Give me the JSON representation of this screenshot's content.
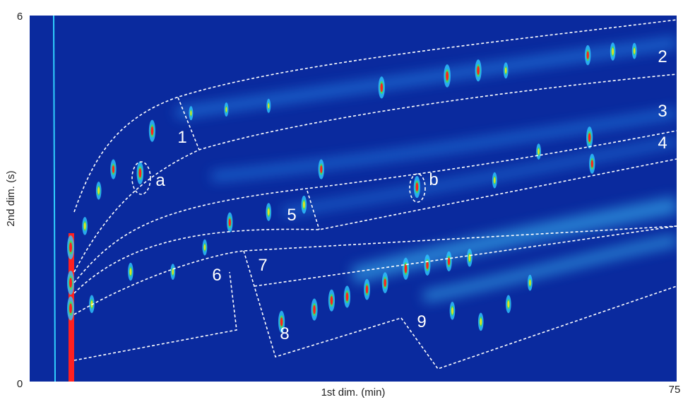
{
  "chart_data": {
    "type": "contour",
    "xlabel": "1st dim. (min)",
    "ylabel": "2nd dim. (s)",
    "xlim": [
      0,
      75
    ],
    "ylim": [
      0,
      6
    ],
    "xticks": [
      0,
      75
    ],
    "yticks": [
      6
    ],
    "background": "#0a2a9e",
    "annotations": [
      "1",
      "2",
      "3",
      "4",
      "5",
      "6",
      "7",
      "8",
      "9",
      "a",
      "b"
    ],
    "peaks": {
      "x": [
        40.8,
        48.4,
        52.0,
        55.2,
        64.7,
        67.6,
        70.1,
        27.7,
        22.8,
        18.7,
        14.2,
        12.8,
        9.7,
        8.0,
        6.4,
        44.9,
        33.8,
        64.9,
        65.2,
        59.0,
        53.9,
        31.8,
        27.7,
        23.2,
        20.3,
        29.2,
        33.0,
        35.0,
        36.8,
        39.1,
        41.2,
        43.6,
        46.1,
        48.6,
        51.0,
        49.0,
        52.3,
        55.5,
        58.0,
        16.6,
        11.7,
        7.2,
        4.75,
        4.75,
        4.75
      ],
      "y": [
        4.82,
        5.01,
        5.1,
        5.1,
        5.35,
        5.41,
        5.42,
        4.52,
        4.46,
        4.4,
        4.11,
        3.42,
        3.48,
        3.13,
        2.55,
        3.19,
        3.48,
        4.0,
        3.57,
        3.77,
        3.3,
        2.9,
        2.78,
        2.61,
        2.2,
        0.98,
        1.18,
        1.33,
        1.39,
        1.51,
        1.62,
        1.85,
        1.91,
        1.97,
        2.03,
        1.16,
        0.98,
        1.27,
        1.62,
        1.8,
        1.8,
        1.27,
        1.62,
        1.2,
        2.2
      ],
      "intensity": [
        0.9,
        0.95,
        0.9,
        0.6,
        0.8,
        0.7,
        0.6,
        0.5,
        0.5,
        0.5,
        0.9,
        0.95,
        0.8,
        0.7,
        0.7,
        0.9,
        0.8,
        0.9,
        0.8,
        0.6,
        0.6,
        0.7,
        0.7,
        0.8,
        0.6,
        0.9,
        0.9,
        0.9,
        0.9,
        0.85,
        0.85,
        0.9,
        0.85,
        0.8,
        0.7,
        0.7,
        0.7,
        0.7,
        0.6,
        0.6,
        0.7,
        0.7,
        1.0,
        1.0,
        1.0
      ]
    }
  }
}
